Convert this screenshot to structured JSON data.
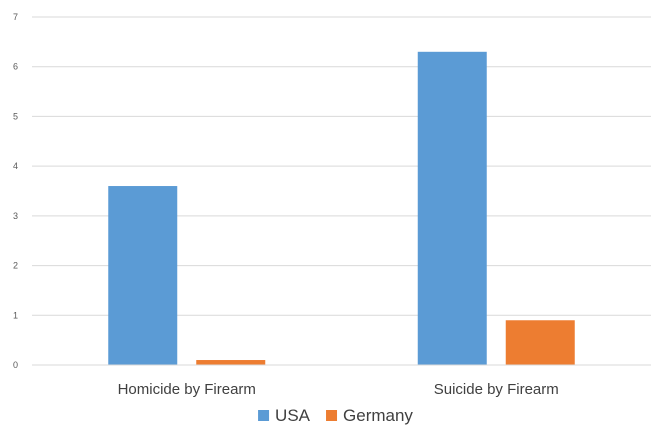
{
  "chart_data": {
    "type": "bar",
    "categories": [
      "Homicide by Firearm",
      "Suicide by Firearm"
    ],
    "series": [
      {
        "name": "USA",
        "values": [
          3.6,
          6.3
        ],
        "color": "#5B9BD5"
      },
      {
        "name": "Germany",
        "values": [
          0.1,
          0.9
        ],
        "color": "#ED7D31"
      }
    ],
    "title": "",
    "xlabel": "",
    "ylabel": "",
    "ylim": [
      0,
      7
    ],
    "yticks": [
      0,
      1,
      2,
      3,
      4,
      5,
      6,
      7
    ],
    "grid": true,
    "legend": "bottom"
  }
}
